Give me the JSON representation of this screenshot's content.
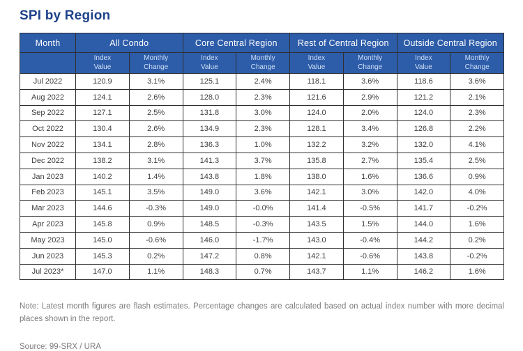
{
  "title": "SPI by Region",
  "chart_data": {
    "type": "table",
    "title": "SPI by Region",
    "month_column_header": "Month",
    "groups": [
      "All Condo",
      "Core Central Region",
      "Rest of Central Region",
      "Outside Central Region"
    ],
    "subcolumns": [
      "Index Value",
      "Monthly Change"
    ],
    "rows": [
      {
        "month": "Jul 2022",
        "values": [
          "120.9",
          "3.1%",
          "125.1",
          "2.4%",
          "118.1",
          "3.6%",
          "118.6",
          "3.6%"
        ]
      },
      {
        "month": "Aug 2022",
        "values": [
          "124.1",
          "2.6%",
          "128.0",
          "2.3%",
          "121.6",
          "2.9%",
          "121.2",
          "2.1%"
        ]
      },
      {
        "month": "Sep 2022",
        "values": [
          "127.1",
          "2.5%",
          "131.8",
          "3.0%",
          "124.0",
          "2.0%",
          "124.0",
          "2.3%"
        ]
      },
      {
        "month": "Oct 2022",
        "values": [
          "130.4",
          "2.6%",
          "134.9",
          "2.3%",
          "128.1",
          "3.4%",
          "126.8",
          "2.2%"
        ]
      },
      {
        "month": "Nov 2022",
        "values": [
          "134.1",
          "2.8%",
          "136.3",
          "1.0%",
          "132.2",
          "3.2%",
          "132.0",
          "4.1%"
        ]
      },
      {
        "month": "Dec 2022",
        "values": [
          "138.2",
          "3.1%",
          "141.3",
          "3.7%",
          "135.8",
          "2.7%",
          "135.4",
          "2.5%"
        ]
      },
      {
        "month": "Jan 2023",
        "values": [
          "140.2",
          "1.4%",
          "143.8",
          "1.8%",
          "138.0",
          "1.6%",
          "136.6",
          "0.9%"
        ]
      },
      {
        "month": "Feb 2023",
        "values": [
          "145.1",
          "3.5%",
          "149.0",
          "3.6%",
          "142.1",
          "3.0%",
          "142.0",
          "4.0%"
        ]
      },
      {
        "month": "Mar 2023",
        "values": [
          "144.6",
          "-0.3%",
          "149.0",
          "-0.0%",
          "141.4",
          "-0.5%",
          "141.7",
          "-0.2%"
        ]
      },
      {
        "month": "Apr 2023",
        "values": [
          "145.8",
          "0.9%",
          "148.5",
          "-0.3%",
          "143.5",
          "1.5%",
          "144.0",
          "1.6%"
        ]
      },
      {
        "month": "May 2023",
        "values": [
          "145.0",
          "-0.6%",
          "146.0",
          "-1.7%",
          "143.0",
          "-0.4%",
          "144.2",
          "0.2%"
        ]
      },
      {
        "month": "Jun 2023",
        "values": [
          "145.3",
          "0.2%",
          "147.2",
          "0.8%",
          "142.1",
          "-0.6%",
          "143.8",
          "-0.2%"
        ]
      },
      {
        "month": "Jul 2023*",
        "values": [
          "147.0",
          "1.1%",
          "148.3",
          "0.7%",
          "143.7",
          "1.1%",
          "146.2",
          "1.6%"
        ]
      }
    ]
  },
  "note": "Note: Latest month figures are flash estimates. Percentage changes are calculated based on actual index number with more decimal places shown in the report.",
  "source": "Source: 99-SRX / URA",
  "colors": {
    "header_bg": "#2d5ca9",
    "title": "#1e4289",
    "border": "#2f2f2f",
    "data_text": "#3f3f3f",
    "subheader_text": "#cfe0f5",
    "muted_text": "#7d7d7d"
  }
}
